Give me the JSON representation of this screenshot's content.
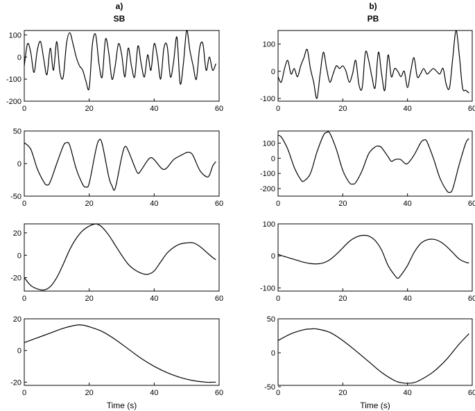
{
  "figure": {
    "xlabel": "Time (s)"
  },
  "columns": [
    {
      "letter": "a)",
      "title": "SB"
    },
    {
      "letter": "b)",
      "title": "PB"
    }
  ],
  "chart_data": [
    {
      "type": "line",
      "column": "SB",
      "row": 1,
      "xlim": [
        0,
        60
      ],
      "ylim": [
        -200,
        120
      ],
      "xticks": [
        0,
        20,
        40,
        60
      ],
      "yticks": [
        100,
        0,
        -100,
        -200
      ],
      "xlabel": "",
      "series": [
        {
          "x": [
            0,
            1,
            2,
            3,
            4,
            5,
            6,
            7,
            8,
            9,
            10,
            11,
            12,
            13,
            14,
            15,
            16,
            17,
            18,
            19,
            20,
            21,
            22,
            23,
            24,
            25,
            26,
            27,
            28,
            29,
            30,
            31,
            32,
            33,
            34,
            35,
            36,
            37,
            38,
            39,
            40,
            41,
            42,
            43,
            44,
            45,
            46,
            47,
            48,
            49,
            50,
            51,
            52,
            53,
            54,
            55,
            56,
            57,
            58,
            59
          ],
          "y": [
            -40,
            60,
            20,
            -70,
            30,
            70,
            -10,
            -80,
            40,
            -60,
            70,
            -70,
            -90,
            60,
            110,
            60,
            0,
            -40,
            -60,
            -110,
            -140,
            60,
            100,
            -30,
            -90,
            80,
            20,
            -100,
            -40,
            60,
            10,
            -90,
            40,
            -40,
            -90,
            50,
            -30,
            -90,
            10,
            -60,
            60,
            0,
            -100,
            40,
            50,
            -90,
            -20,
            90,
            -120,
            -30,
            120,
            30,
            -40,
            -100,
            40,
            60,
            -60,
            0,
            -60,
            -30
          ]
        }
      ]
    },
    {
      "type": "line",
      "column": "SB",
      "row": 2,
      "xlim": [
        0,
        60
      ],
      "ylim": [
        -50,
        50
      ],
      "xticks": [
        0,
        20,
        40,
        60
      ],
      "yticks": [
        50,
        0,
        -50
      ],
      "xlabel": "",
      "series": [
        {
          "x": [
            0,
            2,
            4,
            6,
            7,
            8,
            10,
            12,
            13,
            14,
            16,
            18,
            19,
            20,
            22,
            23,
            24,
            26,
            27,
            28,
            30,
            31,
            32,
            34,
            35,
            36,
            38,
            39,
            40,
            42,
            43,
            44,
            46,
            48,
            50,
            51,
            52,
            54,
            56,
            57,
            58,
            59
          ],
          "y": [
            32,
            22,
            -8,
            -28,
            -33,
            -28,
            0,
            27,
            32,
            28,
            -8,
            -32,
            -36,
            -30,
            20,
            36,
            30,
            -20,
            -34,
            -38,
            10,
            26,
            20,
            -5,
            -15,
            -10,
            5,
            9,
            6,
            -6,
            -9,
            -6,
            6,
            12,
            17,
            17,
            12,
            -10,
            -20,
            -18,
            -4,
            3
          ]
        }
      ]
    },
    {
      "type": "line",
      "column": "SB",
      "row": 3,
      "xlim": [
        0,
        60
      ],
      "ylim": [
        -32,
        28
      ],
      "xticks": [
        0,
        20,
        40,
        60
      ],
      "yticks": [
        20,
        0,
        -20
      ],
      "xlabel": "",
      "series": [
        {
          "x": [
            0,
            2,
            4,
            6,
            8,
            10,
            12,
            14,
            16,
            18,
            20,
            22,
            23,
            24,
            26,
            28,
            30,
            32,
            34,
            36,
            38,
            40,
            42,
            44,
            46,
            48,
            50,
            52,
            54,
            56,
            58,
            59
          ],
          "y": [
            -20,
            -27,
            -30,
            -31,
            -28,
            -20,
            -8,
            5,
            15,
            22,
            26,
            28,
            27,
            25,
            18,
            9,
            0,
            -8,
            -13,
            -16,
            -17,
            -14,
            -6,
            2,
            7,
            10,
            11,
            11,
            8,
            3,
            -2,
            -4
          ]
        }
      ]
    },
    {
      "type": "line",
      "column": "SB",
      "row": 4,
      "xlim": [
        0,
        60
      ],
      "ylim": [
        -22,
        20
      ],
      "xticks": [
        0,
        20,
        40,
        60
      ],
      "yticks": [
        20,
        0,
        -20
      ],
      "xlabel": "Time (s)",
      "series": [
        {
          "x": [
            0,
            4,
            8,
            12,
            16,
            18,
            20,
            24,
            28,
            32,
            36,
            40,
            44,
            48,
            52,
            56,
            58,
            59
          ],
          "y": [
            5,
            8,
            11,
            14,
            16,
            16,
            15,
            12,
            7,
            1,
            -5,
            -10,
            -14,
            -17,
            -19,
            -20,
            -20,
            -20
          ]
        }
      ]
    },
    {
      "type": "line",
      "column": "PB",
      "row": 1,
      "xlim": [
        0,
        60
      ],
      "ylim": [
        -110,
        150
      ],
      "xticks": [
        0,
        20,
        40,
        60
      ],
      "yticks": [
        100,
        0,
        -100
      ],
      "xlabel": "",
      "series": [
        {
          "x": [
            0,
            1,
            2,
            3,
            4,
            5,
            6,
            7,
            8,
            9,
            10,
            11,
            12,
            13,
            14,
            15,
            16,
            17,
            18,
            19,
            20,
            21,
            22,
            23,
            24,
            25,
            26,
            27,
            28,
            29,
            30,
            31,
            32,
            33,
            34,
            35,
            36,
            37,
            38,
            39,
            40,
            41,
            42,
            43,
            44,
            45,
            46,
            47,
            48,
            49,
            50,
            51,
            52,
            53,
            54,
            55,
            56,
            57,
            58,
            59
          ],
          "y": [
            -20,
            -40,
            10,
            40,
            -10,
            10,
            -20,
            20,
            50,
            80,
            10,
            -40,
            -100,
            -10,
            70,
            10,
            -40,
            -10,
            20,
            10,
            20,
            0,
            -40,
            -10,
            40,
            -50,
            -60,
            70,
            40,
            -20,
            -60,
            70,
            -10,
            -70,
            60,
            -20,
            10,
            0,
            -20,
            0,
            -60,
            0,
            50,
            -20,
            -10,
            10,
            -10,
            0,
            10,
            0,
            -10,
            10,
            -50,
            -60,
            50,
            150,
            60,
            -60,
            -70,
            -80
          ]
        }
      ]
    },
    {
      "type": "line",
      "column": "PB",
      "row": 2,
      "xlim": [
        0,
        60
      ],
      "ylim": [
        -250,
        180
      ],
      "xticks": [
        0,
        20,
        40,
        60
      ],
      "yticks": [
        100,
        0,
        -100,
        -200
      ],
      "xlabel": "",
      "series": [
        {
          "x": [
            0,
            1,
            3,
            5,
            7,
            8,
            10,
            12,
            14,
            15,
            16,
            18,
            20,
            22,
            23,
            24,
            26,
            28,
            30,
            31,
            32,
            34,
            35,
            36,
            37,
            38,
            39,
            40,
            42,
            44,
            45,
            46,
            48,
            50,
            52,
            53,
            54,
            56,
            58,
            59
          ],
          "y": [
            150,
            140,
            60,
            -60,
            -140,
            -150,
            -100,
            40,
            150,
            170,
            165,
            60,
            -80,
            -160,
            -170,
            -160,
            -80,
            30,
            75,
            80,
            70,
            10,
            -20,
            -10,
            -5,
            -10,
            -30,
            -35,
            20,
            100,
            120,
            110,
            0,
            -130,
            -210,
            -225,
            -200,
            -40,
            100,
            130
          ]
        }
      ]
    },
    {
      "type": "line",
      "column": "PB",
      "row": 3,
      "xlim": [
        0,
        60
      ],
      "ylim": [
        -110,
        100
      ],
      "xticks": [
        0,
        20,
        40,
        60
      ],
      "yticks": [
        100,
        0,
        -100
      ],
      "xlabel": "",
      "series": [
        {
          "x": [
            0,
            2,
            4,
            6,
            8,
            10,
            12,
            14,
            16,
            18,
            20,
            22,
            24,
            26,
            28,
            30,
            32,
            34,
            36,
            37,
            38,
            40,
            42,
            44,
            46,
            48,
            50,
            52,
            54,
            56,
            58,
            59
          ],
          "y": [
            5,
            -2,
            -8,
            -14,
            -20,
            -24,
            -25,
            -22,
            -12,
            5,
            25,
            45,
            58,
            64,
            62,
            48,
            18,
            -30,
            -60,
            -70,
            -60,
            -30,
            10,
            38,
            50,
            52,
            45,
            30,
            10,
            -10,
            -20,
            -22
          ]
        }
      ]
    },
    {
      "type": "line",
      "column": "PB",
      "row": 4,
      "xlim": [
        0,
        60
      ],
      "ylim": [
        -48,
        50
      ],
      "xticks": [
        0,
        20,
        40,
        60
      ],
      "yticks": [
        50,
        0,
        -50
      ],
      "xlabel": "Time (s)",
      "series": [
        {
          "x": [
            0,
            4,
            8,
            10,
            12,
            16,
            20,
            24,
            28,
            32,
            36,
            38,
            40,
            42,
            44,
            48,
            52,
            56,
            59
          ],
          "y": [
            18,
            28,
            34,
            35,
            35,
            30,
            18,
            3,
            -13,
            -29,
            -41,
            -44,
            -45,
            -44,
            -40,
            -28,
            -10,
            13,
            28
          ]
        }
      ]
    }
  ]
}
